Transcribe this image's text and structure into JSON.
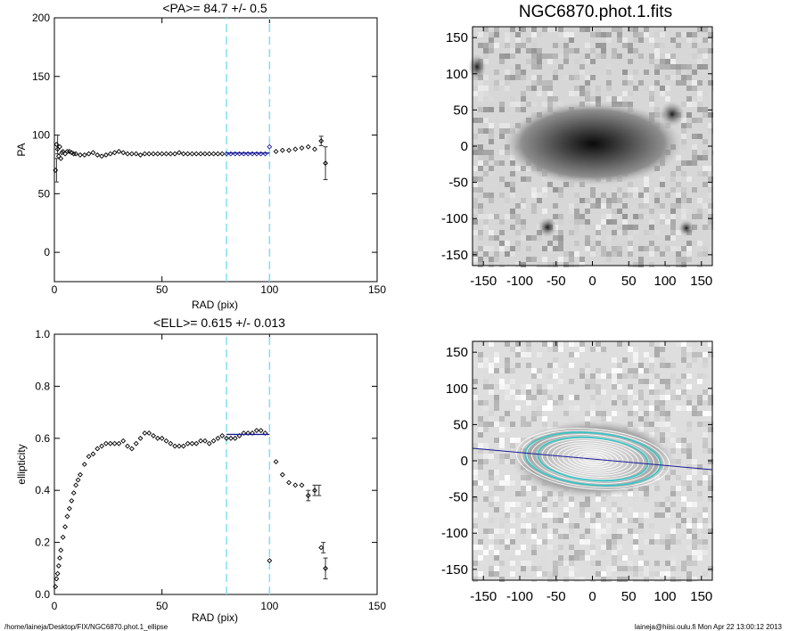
{
  "footer": {
    "left": "/home/laineja/Desktop/FIX/NGC6870.phot.1_ellipse",
    "right": "laineja@hiisi.oulu.fi  Mon Apr 22 13:00:12 2013"
  },
  "image_title": "NGC6870.phot.1.fits",
  "image_axis_ticks": [
    "-150",
    "-100",
    "-50",
    "0",
    "50",
    "100",
    "150"
  ],
  "chart_data": [
    {
      "type": "scatter",
      "title": "<PA>=  84.7 +/-   0.5",
      "xlabel": "RAD (pix)",
      "ylabel": "PA",
      "xlim": [
        0,
        150
      ],
      "ylim": [
        -25,
        200
      ],
      "xticks": [
        "0",
        "50",
        "100",
        "150"
      ],
      "yticks": [
        "0",
        "50",
        "100",
        "150",
        "200"
      ],
      "vlines": [
        80,
        100
      ],
      "colors": {
        "points": "#000000",
        "fit": "#1a1a99",
        "vline": "#7fe0f0"
      },
      "series": [
        {
          "x": [
            0.5,
            1,
            1.5,
            2,
            2.5,
            3,
            3.5,
            4,
            5,
            6,
            7,
            8,
            9,
            10,
            12,
            14,
            16,
            18,
            20,
            22,
            24,
            26,
            28,
            30,
            32,
            34,
            36,
            38,
            40,
            42,
            44,
            46,
            48,
            50,
            52,
            54,
            56,
            58,
            60,
            62,
            64,
            66,
            68,
            70,
            72,
            74,
            76,
            78,
            80,
            82,
            84,
            86,
            88,
            90,
            92,
            94,
            96,
            98,
            100,
            103,
            106,
            109,
            112,
            115,
            118,
            121,
            124,
            126
          ],
          "y": [
            70,
            92,
            88,
            82,
            90,
            80,
            85,
            86,
            84,
            86,
            86,
            85,
            84,
            84,
            83,
            83,
            84,
            85,
            83,
            82,
            83,
            84,
            85,
            86,
            85,
            84,
            84,
            84,
            83,
            84,
            84,
            84,
            84,
            84,
            84,
            84,
            84,
            85,
            84,
            84,
            84,
            84,
            84,
            84,
            84,
            84,
            84,
            84,
            84,
            84,
            84,
            84,
            84,
            84,
            84,
            84,
            84,
            84,
            90,
            86,
            87,
            87,
            88,
            89,
            90,
            88,
            95,
            76
          ]
        }
      ],
      "errors": [
        {
          "x": 1,
          "y": 70,
          "err": 10
        },
        {
          "x": 1.5,
          "y": 92,
          "err": 8
        },
        {
          "x": 124,
          "y": 95,
          "err": 4
        },
        {
          "x": 126,
          "y": 76,
          "err": 14
        }
      ],
      "fit": {
        "x": [
          80,
          100
        ],
        "y": [
          84.7,
          84.7
        ]
      }
    },
    {
      "type": "scatter",
      "title": "<ELL>= 0.615 +/-  0.013",
      "xlabel": "RAD (pix)",
      "ylabel": "ellipticity",
      "xlim": [
        0,
        150
      ],
      "ylim": [
        0,
        1.0
      ],
      "xticks": [
        "0",
        "50",
        "100",
        "150"
      ],
      "yticks": [
        "0.0",
        "0.2",
        "0.4",
        "0.6",
        "0.8",
        "1.0"
      ],
      "vlines": [
        80,
        100
      ],
      "colors": {
        "points": "#000000",
        "fit": "#1a1a99",
        "vline": "#7fe0f0"
      },
      "series": [
        {
          "x": [
            0.5,
            1,
            1.5,
            2,
            2.5,
            3,
            4,
            5,
            6,
            7,
            8,
            9,
            10,
            11,
            12,
            14,
            16,
            18,
            20,
            22,
            24,
            26,
            28,
            30,
            32,
            34,
            36,
            38,
            40,
            42,
            44,
            46,
            48,
            50,
            52,
            54,
            56,
            58,
            60,
            62,
            64,
            66,
            68,
            70,
            72,
            74,
            76,
            78,
            80,
            82,
            84,
            86,
            88,
            90,
            92,
            94,
            96,
            98,
            100,
            103,
            106,
            109,
            112,
            115,
            118,
            121,
            124,
            126
          ],
          "y": [
            0.03,
            0.06,
            0.08,
            0.11,
            0.14,
            0.17,
            0.22,
            0.26,
            0.3,
            0.33,
            0.36,
            0.39,
            0.42,
            0.44,
            0.46,
            0.5,
            0.53,
            0.54,
            0.56,
            0.57,
            0.58,
            0.58,
            0.58,
            0.58,
            0.59,
            0.57,
            0.56,
            0.58,
            0.6,
            0.62,
            0.62,
            0.61,
            0.6,
            0.6,
            0.59,
            0.58,
            0.57,
            0.57,
            0.57,
            0.58,
            0.58,
            0.58,
            0.59,
            0.59,
            0.58,
            0.59,
            0.6,
            0.61,
            0.6,
            0.6,
            0.6,
            0.61,
            0.62,
            0.62,
            0.62,
            0.63,
            0.63,
            0.62,
            0.13,
            0.51,
            0.46,
            0.43,
            0.42,
            0.42,
            0.38,
            0.4,
            0.18,
            0.1
          ]
        }
      ],
      "errors": [
        {
          "x": 118,
          "y": 0.38,
          "err": 0.02
        },
        {
          "x": 121,
          "y": 0.4,
          "err": 0.02
        },
        {
          "x": 123,
          "y": 0.4,
          "err": 0.02
        },
        {
          "x": 125,
          "y": 0.18,
          "err": 0.02
        },
        {
          "x": 126,
          "y": 0.1,
          "err": 0.04
        }
      ],
      "fit": {
        "x": [
          80,
          100
        ],
        "y": [
          0.615,
          0.615
        ]
      }
    }
  ]
}
